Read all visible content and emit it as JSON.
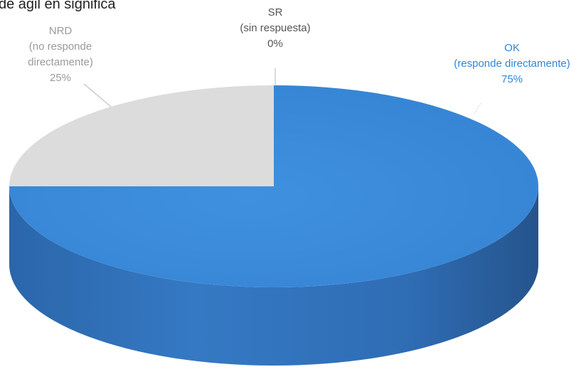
{
  "chart_data": {
    "type": "pie",
    "style": "3d",
    "partial_title": "de ágil en significa",
    "slices": [
      {
        "key": "ok",
        "label_lines": [
          "OK",
          "(responde directamente)",
          "75%"
        ],
        "value": 75,
        "color": "#3b8ad9",
        "side_color": "#2f6db5",
        "label_color": "#2e86d8"
      },
      {
        "key": "nrd",
        "label_lines": [
          "NRD",
          "(no responde",
          "directamente)",
          "25%"
        ],
        "value": 25,
        "color": "#dcdcdc",
        "side_color": "#bdbdbd",
        "label_color": "#9a9a9a"
      },
      {
        "key": "sr",
        "label_lines": [
          "SR",
          "(sin respuesta)",
          "0%"
        ],
        "value": 0,
        "color": "#7a7a7a",
        "side_color": "#5e5e5e",
        "label_color": "#555555"
      }
    ],
    "legend": "none"
  }
}
